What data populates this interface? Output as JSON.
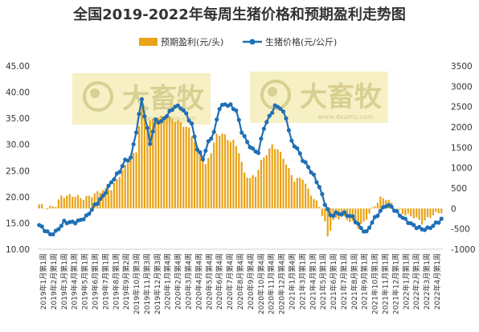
{
  "colors": {
    "bar": "#E8A317",
    "line": "#1F6FB5",
    "watermark_bg": "#F6F0C4"
  },
  "watermark": {
    "text": "大畜牧",
    "url": "www.dxumu.com"
  },
  "chart_data": {
    "type": "bar+line",
    "title": "全国2019-2022年每周生猪价格和预期盈利走势图",
    "legend": [
      {
        "name": "预期盈利(元/头)",
        "kind": "bar"
      },
      {
        "name": "生猪价格(元/公斤)",
        "kind": "line"
      }
    ],
    "legend_position": "top-center",
    "y_left": {
      "min": 10,
      "max": 45,
      "step": 5,
      "tick_labels": [
        "10.00",
        "15.00",
        "20.00",
        "25.00",
        "30.00",
        "35.00",
        "40.00",
        "45.00"
      ]
    },
    "y_right": {
      "min": -1000,
      "max": 3500,
      "step": 500,
      "tick_labels": [
        "-1000",
        "-500",
        "0",
        "500",
        "1000",
        "1500",
        "2000",
        "2500",
        "3000",
        "3500"
      ]
    },
    "x_tick_labels": [
      "2019年1月第1周",
      "2019年2月第1周",
      "2019年3月第1周",
      "2019年4月第1周",
      "2019年5月第1周",
      "2019年6月第1周",
      "2019年7月第1周",
      "2019年8月第1周",
      "2019年9月第2周",
      "2019年10月第3周",
      "2019年11月第3周",
      "2019年12月第3周",
      "2020年1月第4周",
      "2020年2月第4周",
      "2020年3月第4周",
      "2020年4月第4周",
      "2020年5月第4周",
      "2020年6月第4周",
      "2020年7月第4周",
      "2020年8月第4周",
      "2020年9月第4周",
      "2020年10月第4周",
      "2020年11月第4周",
      "2020年12月第4周",
      "2021年1月第4周",
      "2021年3月第1周",
      "2021年4月第1周",
      "2021年5月第1周",
      "2021年6月第1周",
      "2021年7月第1周",
      "2021年8月第1周",
      "2021年9月第1周",
      "2021年10月第1周",
      "2021年11月第1周",
      "2021年12月第1周",
      "2022年1月第1周",
      "2022年2月第1周",
      "2022年3月第1周",
      "2022年4月第1周"
    ],
    "price_keypoints": [
      [
        0,
        14.6
      ],
      [
        2,
        13.7
      ],
      [
        4,
        12.8
      ],
      [
        6,
        13.3
      ],
      [
        9,
        15.2
      ],
      [
        12,
        15.1
      ],
      [
        14,
        15.3
      ],
      [
        17,
        16.2
      ],
      [
        20,
        18.3
      ],
      [
        23,
        20.1
      ],
      [
        26,
        22.8
      ],
      [
        29,
        24.9
      ],
      [
        31,
        26.9
      ],
      [
        33,
        27.4
      ],
      [
        35,
        32.5
      ],
      [
        37,
        38.7
      ],
      [
        38,
        35.5
      ],
      [
        40,
        30.3
      ],
      [
        42,
        34.6
      ],
      [
        44,
        34.3
      ],
      [
        46,
        35.6
      ],
      [
        49,
        37.3
      ],
      [
        51,
        37.1
      ],
      [
        53,
        35.8
      ],
      [
        55,
        33.8
      ],
      [
        57,
        29.2
      ],
      [
        59,
        27.3
      ],
      [
        61,
        30.4
      ],
      [
        63,
        32.3
      ],
      [
        65,
        37.0
      ],
      [
        67,
        37.7
      ],
      [
        69,
        37.4
      ],
      [
        71,
        36.5
      ],
      [
        73,
        32.5
      ],
      [
        75,
        30.4
      ],
      [
        77,
        29.0
      ],
      [
        79,
        28.5
      ],
      [
        81,
        33.2
      ],
      [
        83,
        35.3
      ],
      [
        85,
        37.3
      ],
      [
        87,
        37.0
      ],
      [
        89,
        35.1
      ],
      [
        91,
        30.5
      ],
      [
        93,
        29.2
      ],
      [
        95,
        27.1
      ],
      [
        97,
        25.7
      ],
      [
        99,
        24.0
      ],
      [
        101,
        21.9
      ],
      [
        103,
        18.7
      ],
      [
        105,
        16.4
      ],
      [
        107,
        16.8
      ],
      [
        110,
        16.8
      ],
      [
        113,
        16.1
      ],
      [
        116,
        14.0
      ],
      [
        118,
        13.2
      ],
      [
        120,
        15.2
      ],
      [
        123,
        17.3
      ],
      [
        125,
        18.4
      ],
      [
        127,
        18.1
      ],
      [
        129,
        17.0
      ],
      [
        132,
        15.6
      ],
      [
        135,
        14.5
      ],
      [
        138,
        13.8
      ],
      [
        140,
        13.9
      ],
      [
        142,
        14.5
      ],
      [
        145,
        15.7
      ]
    ],
    "profit_keypoints": [
      [
        0,
        100
      ],
      [
        3,
        0
      ],
      [
        6,
        80
      ],
      [
        8,
        300
      ],
      [
        12,
        320
      ],
      [
        16,
        250
      ],
      [
        19,
        320
      ],
      [
        23,
        460
      ],
      [
        26,
        480
      ],
      [
        29,
        820
      ],
      [
        32,
        1150
      ],
      [
        35,
        1400
      ],
      [
        37,
        2700
      ],
      [
        39,
        2100
      ],
      [
        42,
        2200
      ],
      [
        45,
        2250
      ],
      [
        48,
        2200
      ],
      [
        51,
        2100
      ],
      [
        54,
        1950
      ],
      [
        57,
        1500
      ],
      [
        60,
        1050
      ],
      [
        62,
        1400
      ],
      [
        64,
        1800
      ],
      [
        66,
        1850
      ],
      [
        68,
        1700
      ],
      [
        70,
        1650
      ],
      [
        72,
        1400
      ],
      [
        74,
        850
      ],
      [
        76,
        750
      ],
      [
        78,
        800
      ],
      [
        80,
        1150
      ],
      [
        82,
        1350
      ],
      [
        84,
        1550
      ],
      [
        86,
        1450
      ],
      [
        88,
        1250
      ],
      [
        90,
        950
      ],
      [
        92,
        700
      ],
      [
        95,
        750
      ],
      [
        97,
        450
      ],
      [
        99,
        250
      ],
      [
        101,
        50
      ],
      [
        103,
        -350
      ],
      [
        104,
        -700
      ],
      [
        106,
        -300
      ],
      [
        109,
        -200
      ],
      [
        112,
        -300
      ],
      [
        115,
        -450
      ],
      [
        117,
        -350
      ],
      [
        119,
        -120
      ],
      [
        121,
        80
      ],
      [
        123,
        250
      ],
      [
        125,
        250
      ],
      [
        127,
        120
      ],
      [
        129,
        -30
      ],
      [
        132,
        -150
      ],
      [
        135,
        -200
      ],
      [
        138,
        -350
      ],
      [
        140,
        -250
      ],
      [
        142,
        -150
      ],
      [
        145,
        -80
      ]
    ]
  }
}
